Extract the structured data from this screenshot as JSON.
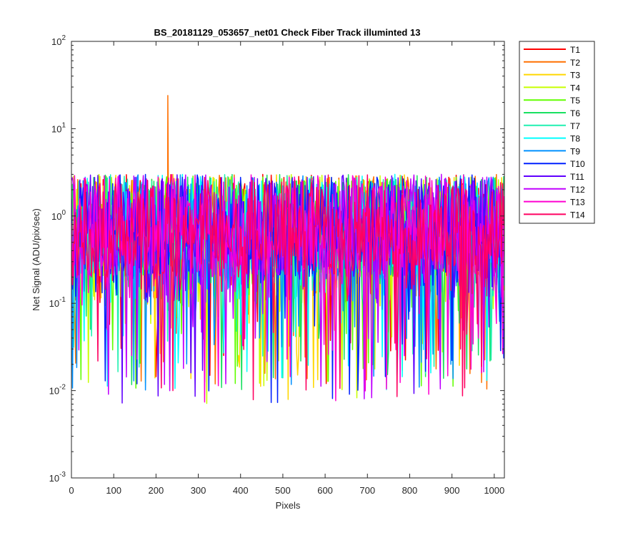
{
  "chart_data": {
    "type": "line",
    "title": "BS_20181129_053657_net01   Check Fiber     Track illuminted 13",
    "xlabel": "Pixels",
    "ylabel": "Net Signal (ADU/pix/sec)",
    "xlim": [
      0,
      1024
    ],
    "ylim": [
      0.001,
      100
    ],
    "yscale": "log",
    "x_ticks": [
      0,
      100,
      200,
      300,
      400,
      500,
      600,
      700,
      800,
      900,
      1000
    ],
    "y_ticks": [
      {
        "base": "10",
        "exp": "-3",
        "value": 0.001
      },
      {
        "base": "10",
        "exp": "-2",
        "value": 0.01
      },
      {
        "base": "10",
        "exp": "-1",
        "value": 0.1
      },
      {
        "base": "10",
        "exp": "0",
        "value": 1
      },
      {
        "base": "10",
        "exp": "1",
        "value": 10
      },
      {
        "base": "10",
        "exp": "2",
        "value": 100
      }
    ],
    "grid": false,
    "legend_position": "outside-right",
    "series": [
      {
        "name": "T1",
        "color": "#ff0000",
        "typical_range": [
          0.01,
          3
        ]
      },
      {
        "name": "T2",
        "color": "#ff7000",
        "typical_range": [
          0.01,
          3
        ],
        "peak": {
          "x": 228,
          "y": 24
        }
      },
      {
        "name": "T3",
        "color": "#ffd700",
        "typical_range": [
          0.007,
          3
        ]
      },
      {
        "name": "T4",
        "color": "#c8ff00",
        "typical_range": [
          0.007,
          3
        ]
      },
      {
        "name": "T5",
        "color": "#60ff00",
        "typical_range": [
          0.01,
          3
        ]
      },
      {
        "name": "T6",
        "color": "#18e060",
        "typical_range": [
          0.01,
          3
        ]
      },
      {
        "name": "T7",
        "color": "#20f0b0",
        "typical_range": [
          0.01,
          3
        ]
      },
      {
        "name": "T8",
        "color": "#00ffff",
        "typical_range": [
          0.01,
          3
        ]
      },
      {
        "name": "T9",
        "color": "#0090ff",
        "typical_range": [
          0.01,
          3
        ]
      },
      {
        "name": "T10",
        "color": "#0020ff",
        "typical_range": [
          0.007,
          3
        ]
      },
      {
        "name": "T11",
        "color": "#6000ff",
        "typical_range": [
          0.007,
          3
        ]
      },
      {
        "name": "T12",
        "color": "#c000ff",
        "typical_range": [
          0.007,
          3
        ]
      },
      {
        "name": "T13",
        "color": "#ff00d0",
        "typical_range": [
          0.007,
          3
        ]
      },
      {
        "name": "T14",
        "color": "#ff0060",
        "typical_range": [
          0.007,
          3
        ]
      }
    ]
  }
}
